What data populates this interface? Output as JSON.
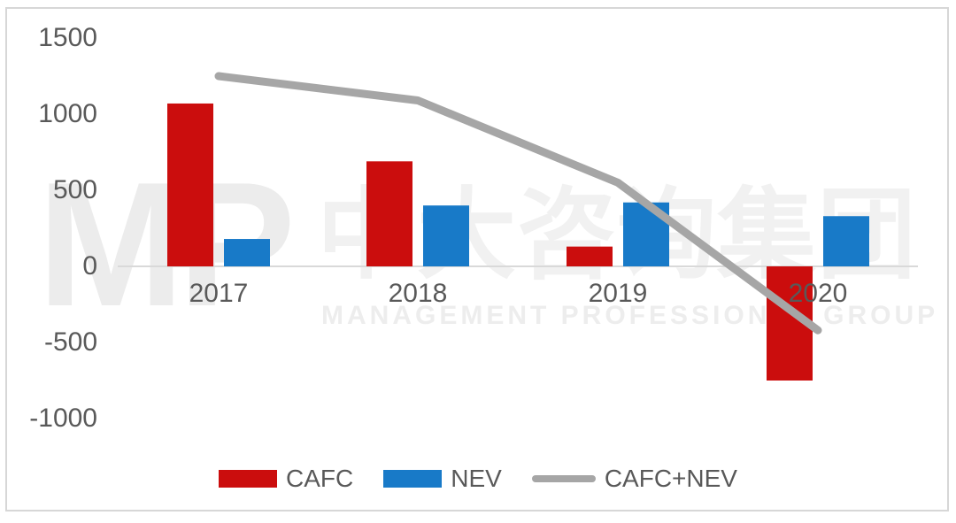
{
  "watermark": {
    "logo": "MP",
    "cn": "中大咨询集团",
    "en": "MANAGEMENT PROFESSIONAL GROUP"
  },
  "chart_data": {
    "type": "bar",
    "subtype": "bar+line combo",
    "title": "",
    "xlabel": "",
    "ylabel": "",
    "categories": [
      "2017",
      "2018",
      "2019",
      "2020"
    ],
    "series": [
      {
        "name": "CAFC",
        "type": "bar",
        "color": "#cb0d0d",
        "values": [
          1070,
          690,
          130,
          -750
        ]
      },
      {
        "name": "NEV",
        "type": "bar",
        "color": "#187ac8",
        "values": [
          180,
          400,
          420,
          330
        ]
      },
      {
        "name": "CAFC+NEV",
        "type": "line",
        "color": "#a6a6a6",
        "values": [
          1250,
          1090,
          550,
          -420
        ]
      }
    ],
    "yticks": [
      1500,
      1000,
      500,
      0,
      -500,
      -1000
    ],
    "ylim": [
      -1000,
      1500
    ],
    "grid": "zero-axis-only",
    "legend_position": "bottom",
    "axis_line_color": "#d9d9d9",
    "text_color": "#595959"
  }
}
